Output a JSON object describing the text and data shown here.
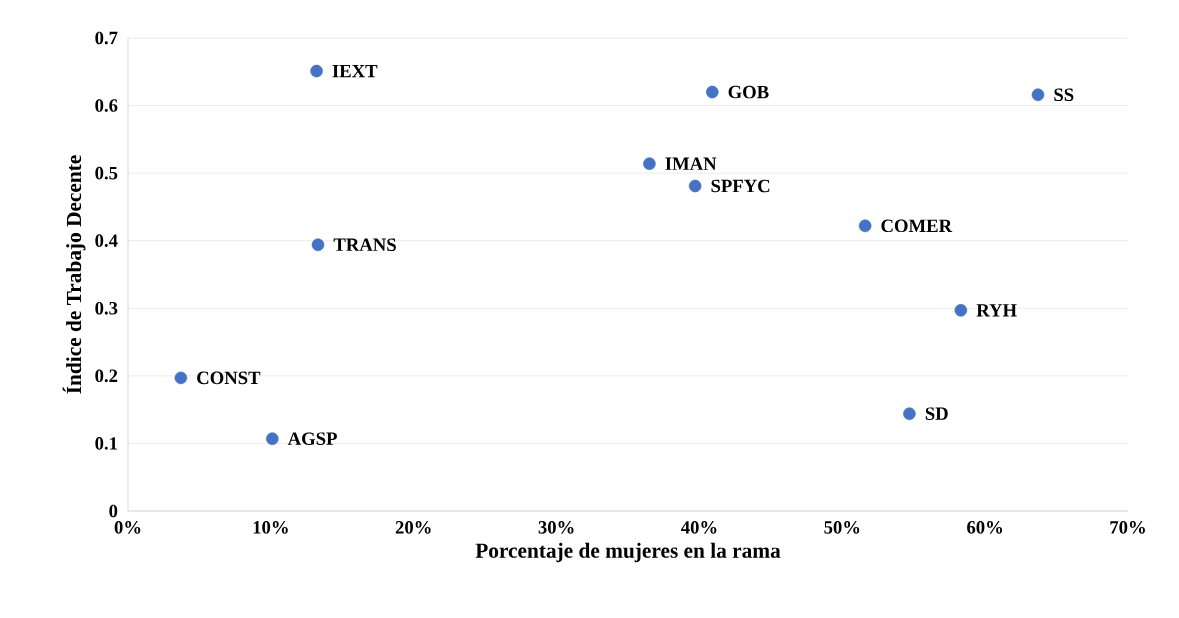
{
  "chart_data": {
    "type": "scatter",
    "xlabel": "Porcentaje de mujeres en la rama",
    "ylabel": "Índice de Trabajo Decente",
    "x": [
      13.2,
      40.9,
      63.7,
      36.5,
      39.7,
      51.6,
      13.3,
      58.3,
      3.7,
      10.1,
      54.7
    ],
    "values": [
      0.651,
      0.62,
      0.616,
      0.514,
      0.481,
      0.422,
      0.394,
      0.297,
      0.197,
      0.107,
      0.144
    ],
    "color": "#4472c4",
    "marker": "circle",
    "grid": "y",
    "xlim": [
      0,
      70
    ],
    "ylim": [
      0,
      0.7
    ],
    "xticks": [
      {
        "value": 0,
        "label": "0%"
      },
      {
        "value": 10,
        "label": "10%"
      },
      {
        "value": 20,
        "label": "20%"
      },
      {
        "value": 30,
        "label": "30%"
      },
      {
        "value": 40,
        "label": "40%"
      },
      {
        "value": 50,
        "label": "50%"
      },
      {
        "value": 60,
        "label": "60%"
      },
      {
        "value": 70,
        "label": "70%"
      }
    ],
    "yticks": [
      0,
      0.1,
      0.2,
      0.3,
      0.4,
      0.5,
      0.6,
      0.7
    ],
    "annotations": [
      {
        "text": "IEXT",
        "x": 13.2,
        "y": 0.651
      },
      {
        "text": "GOB",
        "x": 40.9,
        "y": 0.62
      },
      {
        "text": "SS",
        "x": 63.7,
        "y": 0.616
      },
      {
        "text": "IMAN",
        "x": 36.5,
        "y": 0.514
      },
      {
        "text": "SPFYC",
        "x": 39.7,
        "y": 0.481
      },
      {
        "text": "COMER",
        "x": 51.6,
        "y": 0.422
      },
      {
        "text": "TRANS",
        "x": 13.3,
        "y": 0.394
      },
      {
        "text": "RYH",
        "x": 58.3,
        "y": 0.297
      },
      {
        "text": "CONST",
        "x": 3.7,
        "y": 0.197
      },
      {
        "text": "AGSP",
        "x": 10.1,
        "y": 0.107
      },
      {
        "text": "SD",
        "x": 54.7,
        "y": 0.144
      }
    ]
  }
}
